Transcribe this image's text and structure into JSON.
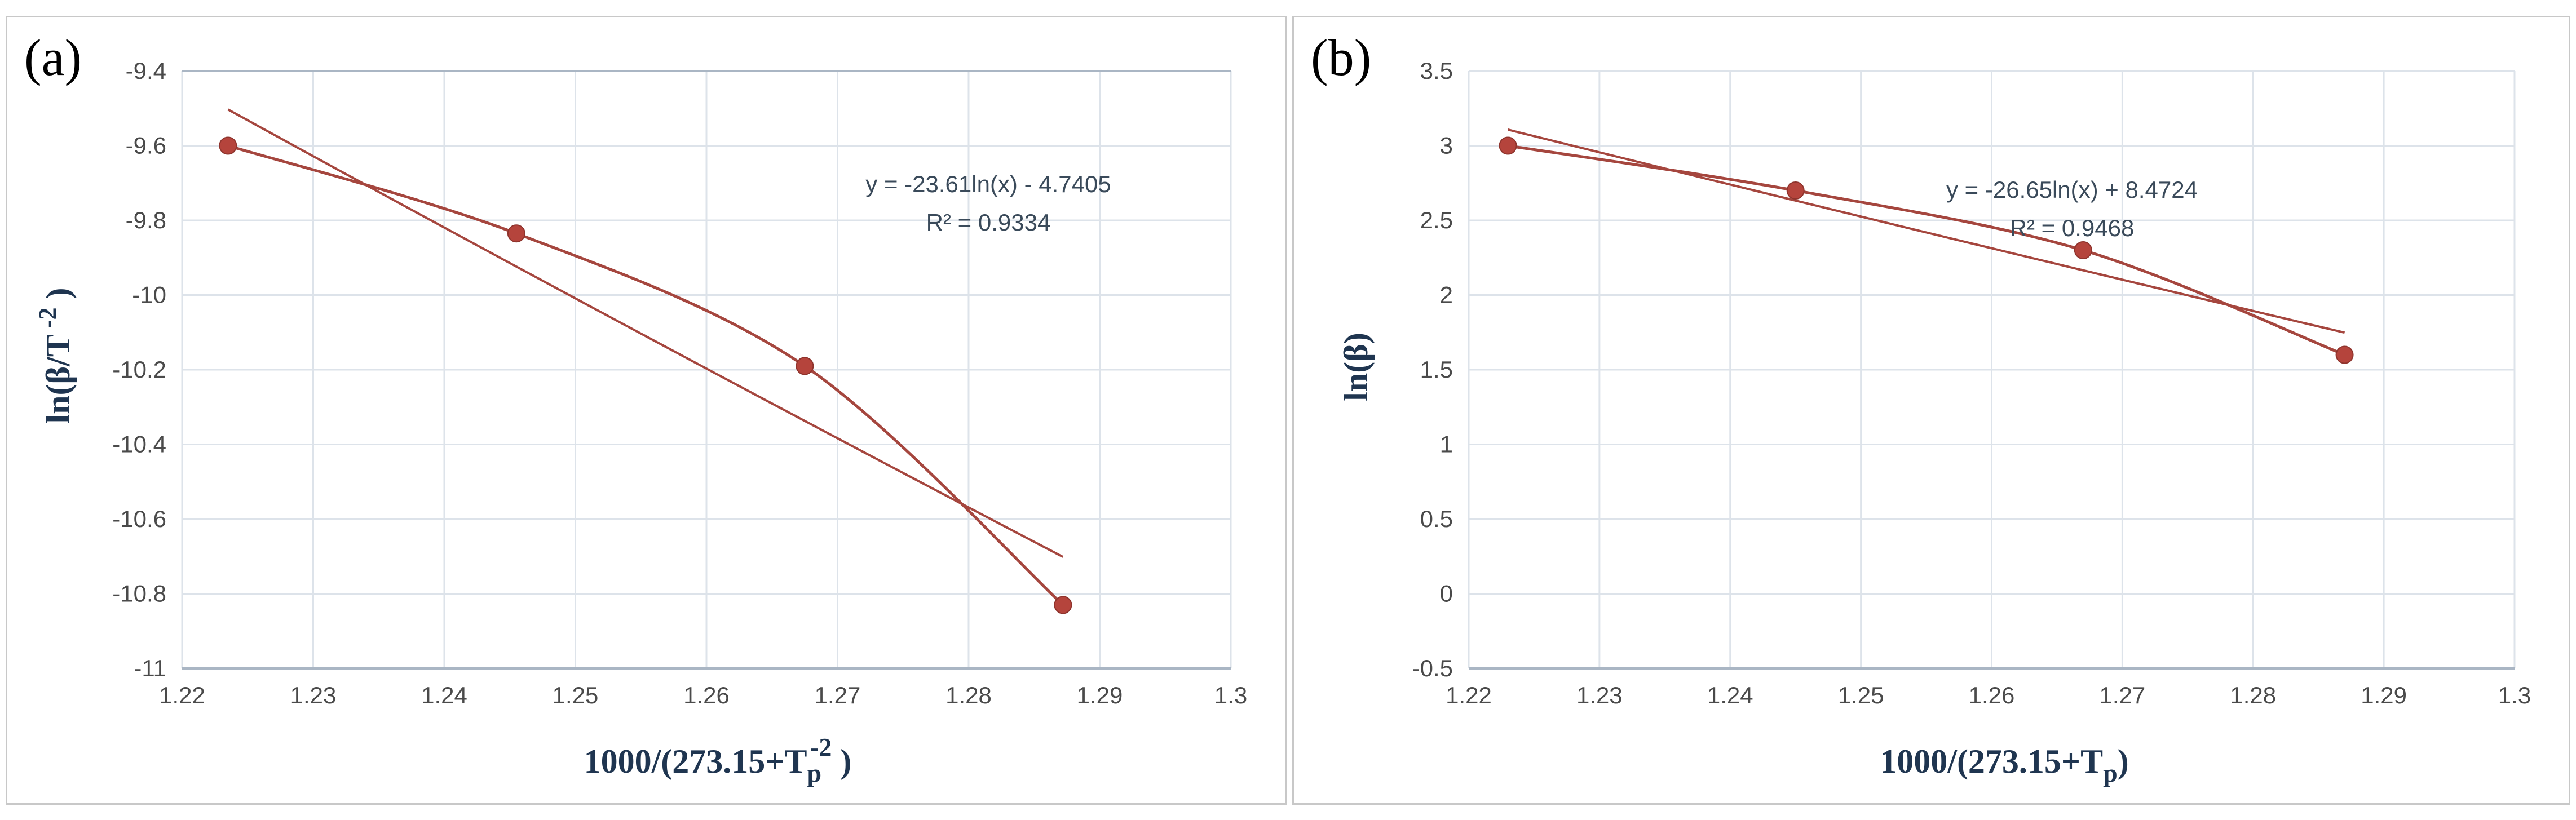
{
  "colors": {
    "series": "#a5463e",
    "marker": "#b5443c",
    "grid": "#dde3ea",
    "axis": "#aab6c4",
    "axis_title": "#1f3550"
  },
  "chart_data": [
    {
      "panel_label": "(a)",
      "type": "scatter",
      "x": [
        1.2235,
        1.2455,
        1.2675,
        1.2872
      ],
      "y": [
        -9.6,
        -9.835,
        -10.19,
        -10.83
      ],
      "xlim": [
        1.22,
        1.3
      ],
      "ylim": [
        -11,
        -9.4
      ],
      "xticks": [
        "1.22",
        "1.23",
        "1.24",
        "1.25",
        "1.26",
        "1.27",
        "1.28",
        "1.29",
        "1.3"
      ],
      "yticks": [
        "-9.4",
        "-9.6",
        "-9.8",
        "-10",
        "-10.2",
        "-10.4",
        "-10.6",
        "-10.8",
        "-11"
      ],
      "xlabel": {
        "main": "1000/(273.15+T",
        "sub": "p",
        "sup": "-2",
        "close": " )"
      },
      "ylabel": {
        "main": "ln(β/T",
        "sup": " -2",
        "close": " )"
      },
      "trendline": {
        "type": "logarithmic",
        "a": -23.61,
        "b": -4.7405,
        "x_range": [
          1.2235,
          1.2872
        ]
      },
      "equation": "y = -23.61ln(x) - 4.7405",
      "r_squared": "R² = 0.9334",
      "grid": true,
      "legend": "none"
    },
    {
      "panel_label": "(b)",
      "type": "scatter",
      "x": [
        1.223,
        1.245,
        1.267,
        1.287
      ],
      "y": [
        3.0,
        2.7,
        2.3,
        1.6
      ],
      "xlim": [
        1.22,
        1.3
      ],
      "ylim": [
        -0.5,
        3.5
      ],
      "xticks": [
        "1.22",
        "1.23",
        "1.24",
        "1.25",
        "1.26",
        "1.27",
        "1.28",
        "1.29",
        "1.3"
      ],
      "yticks": [
        "3.5",
        "3",
        "2.5",
        "2",
        "1.5",
        "1",
        "0.5",
        "0",
        "-0.5"
      ],
      "xlabel": {
        "main": "1000/(273.15+T",
        "sub": "p",
        "sup": "",
        "close": ")"
      },
      "ylabel": {
        "main": "ln(β)",
        "sup": "",
        "close": ""
      },
      "trendline": {
        "type": "logarithmic",
        "a": -26.65,
        "b": 8.4724,
        "x_range": [
          1.223,
          1.287
        ]
      },
      "equation": "y = -26.65ln(x) + 8.4724",
      "r_squared": "R² = 0.9468",
      "grid": true,
      "legend": "none"
    }
  ]
}
